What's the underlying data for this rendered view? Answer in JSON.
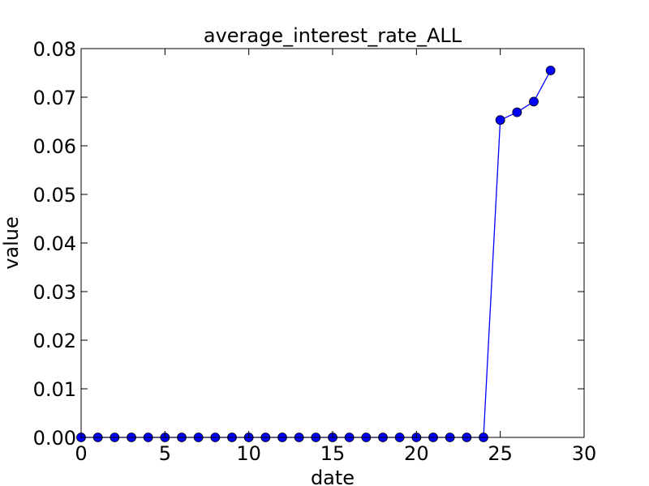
{
  "chart_data": {
    "type": "line",
    "title": "average_interest_rate_ALL",
    "xlabel": "date",
    "ylabel": "value",
    "xlim": [
      0,
      30
    ],
    "ylim": [
      0,
      0.08
    ],
    "x_ticks": [
      "0",
      "5",
      "10",
      "15",
      "20",
      "25",
      "30"
    ],
    "y_ticks": [
      "0.00",
      "0.01",
      "0.02",
      "0.03",
      "0.04",
      "0.05",
      "0.06",
      "0.07",
      "0.08"
    ],
    "grid": false,
    "legend": "none",
    "series": [
      {
        "color": "#0000ff",
        "marker": "circle",
        "x": [
          0,
          1,
          2,
          3,
          4,
          5,
          6,
          7,
          8,
          9,
          10,
          11,
          12,
          13,
          14,
          15,
          16,
          17,
          18,
          19,
          20,
          21,
          22,
          23,
          24,
          25,
          26,
          27,
          28
        ],
        "values": [
          0,
          0,
          0,
          0,
          0,
          0,
          0,
          0,
          0,
          0,
          0,
          0,
          0,
          0,
          0,
          0,
          0,
          0,
          0,
          0,
          0,
          0,
          0,
          0,
          0,
          0.0653,
          0.0669,
          0.0691,
          0.0755
        ]
      }
    ]
  }
}
